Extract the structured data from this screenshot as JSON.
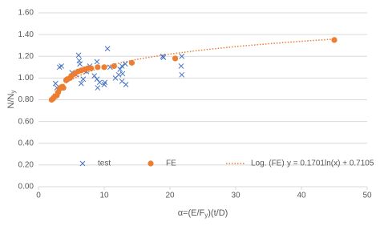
{
  "chart_data": {
    "type": "scatter",
    "xlabel": [
      "α=(E/F",
      "y",
      ")(t/D)"
    ],
    "ylabel": [
      "N/N",
      "y"
    ],
    "xlim": [
      0,
      50
    ],
    "xticks": [
      0,
      10,
      20,
      30,
      40,
      50
    ],
    "ylim": [
      0,
      1.6
    ],
    "yticks": [
      {
        "value": 0,
        "label": "0.00"
      },
      {
        "value": 0.2,
        "label": "0.20"
      },
      {
        "value": 0.4,
        "label": "0.40"
      },
      {
        "value": 0.6,
        "label": "0.60"
      },
      {
        "value": 0.8,
        "label": "0.80"
      },
      {
        "value": 1.0,
        "label": "1.00"
      },
      {
        "value": 1.2,
        "label": "1.20"
      },
      {
        "value": 1.4,
        "label": "1.40"
      },
      {
        "value": 1.6,
        "label": "1.60"
      }
    ],
    "grid": true,
    "legend": "lower center",
    "series": [
      {
        "name": "test",
        "marker": "x",
        "color": "#4472c4",
        "x": [
          2.6,
          3.2,
          3.5,
          2.8,
          6.1,
          6.2,
          6.3,
          5.7,
          5.1,
          6.8,
          6.5,
          7.3,
          7.8,
          8.9,
          8.5,
          8.9,
          9.3,
          9.0,
          10.5,
          10.0,
          10.1,
          10.9,
          11.7,
          12.2,
          12.4,
          12.7,
          12.7,
          12.8,
          13.3,
          13.2,
          18.9,
          19.0,
          21.8,
          21.7,
          21.8
        ],
        "values": [
          0.95,
          1.1,
          1.11,
          0.91,
          1.21,
          1.16,
          1.13,
          1.03,
          1.05,
          0.99,
          0.95,
          1.06,
          1.11,
          1.15,
          1.02,
          0.99,
          0.96,
          0.91,
          1.27,
          0.94,
          0.96,
          1.1,
          1.0,
          1.03,
          1.08,
          0.97,
          1.11,
          1.04,
          0.94,
          1.13,
          1.2,
          1.19,
          1.2,
          1.11,
          1.03
        ]
      },
      {
        "name": "FE",
        "marker": "circle",
        "color": "#ed7d31",
        "x": [
          2.0,
          2.2,
          2.5,
          2.8,
          3.0,
          3.2,
          3.4,
          3.6,
          3.8,
          4.2,
          4.4,
          4.8,
          5.0,
          5.5,
          6.0,
          6.5,
          7.0,
          7.5,
          8.0,
          9.0,
          10.0,
          11.5,
          14.2,
          20.8,
          45.0
        ],
        "values": [
          0.8,
          0.81,
          0.83,
          0.84,
          0.87,
          0.9,
          0.91,
          0.92,
          0.91,
          0.98,
          0.99,
          1.0,
          1.02,
          1.04,
          1.06,
          1.07,
          1.08,
          1.09,
          1.09,
          1.1,
          1.1,
          1.11,
          1.14,
          1.18,
          1.35
        ]
      }
    ],
    "trendline": {
      "name": "Log. (FE)",
      "equation": "y = 0.1701ln(x) + 0.7105",
      "color": "#ed7d31",
      "a": 0.1701,
      "b": 0.7105,
      "x_start": 2.0,
      "x_end": 45.0
    }
  }
}
